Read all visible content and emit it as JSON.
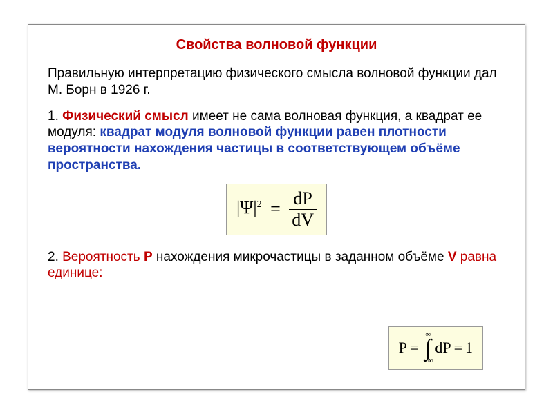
{
  "colors": {
    "title": "#c00000",
    "body": "#000000",
    "emph_red": "#c00000",
    "emph_blue": "#1f3fb3",
    "formula_bg": "#fdfde0",
    "formula_border": "#999999"
  },
  "fontsize": {
    "title": 20,
    "body": 19,
    "formula": 26
  },
  "title": "Свойства волновой функции",
  "intro": "Правильную интерпретацию физического смысла волновой функции дал М. Борн в 1926 г.",
  "item1": {
    "num": "1. ",
    "lead": "Физический смысл",
    "mid": " имеет не сама волновая функция, а квадрат ее модуля: ",
    "bold": "квадрат модуля волновой функции равен плотности вероятности нахождения частицы в соответствующем  объёме пространства."
  },
  "formula1": {
    "lhs_open": "|",
    "lhs_sym": "Ψ",
    "lhs_close": "|",
    "lhs_sup": "2",
    "eq": "=",
    "num": "dP",
    "den": "dV"
  },
  "item2": {
    "num": "2. ",
    "w_prob": "Вероятность ",
    "w_P": "P",
    "mid": " нахождения микрочастицы в заданном объёме ",
    "w_V": "V",
    "tail": " равна единице:"
  },
  "formula2": {
    "P": "P",
    "eq1": "=",
    "upper": "∞",
    "sym": "∫",
    "lower": "−∞",
    "dP": "dP",
    "eq2": "=",
    "one": "1"
  }
}
